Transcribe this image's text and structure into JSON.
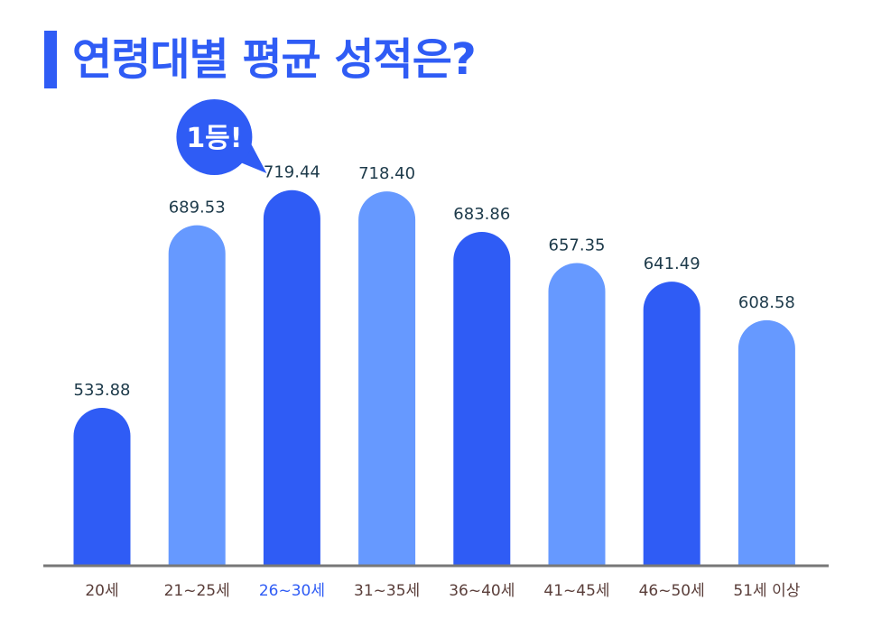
{
  "title": "연령대별 평균 성적은?",
  "callout": "1등!",
  "colors": {
    "title": "#2f5cf5",
    "bar_dark": "#2f5cf5",
    "bar_light": "#6699ff",
    "value_label": "#1d3a4a",
    "axis_label": "#5a3e3a",
    "highlight_label": "#2f5cf5",
    "axis_line": "#777777",
    "callout_bg": "#2f5cf5",
    "callout_text": "#ffffff"
  },
  "chart_data": {
    "type": "bar",
    "title": "연령대별 평균 성적은?",
    "xlabel": "",
    "ylabel": "",
    "categories": [
      "20세",
      "21~25세",
      "26~30세",
      "31~35세",
      "36~40세",
      "41~45세",
      "46~50세",
      "51세 이상"
    ],
    "values": [
      533.88,
      689.53,
      719.44,
      718.4,
      683.86,
      657.35,
      641.49,
      608.58
    ],
    "value_labels": [
      "533.88",
      "689.53",
      "719.44",
      "718.40",
      "683.86",
      "657.35",
      "641.49",
      "608.58"
    ],
    "bar_colors": [
      "dark",
      "light",
      "dark",
      "light",
      "dark",
      "light",
      "dark",
      "light"
    ],
    "highlight_index": 2,
    "ylim": [
      400,
      750
    ],
    "grid": false,
    "legend": "none"
  }
}
